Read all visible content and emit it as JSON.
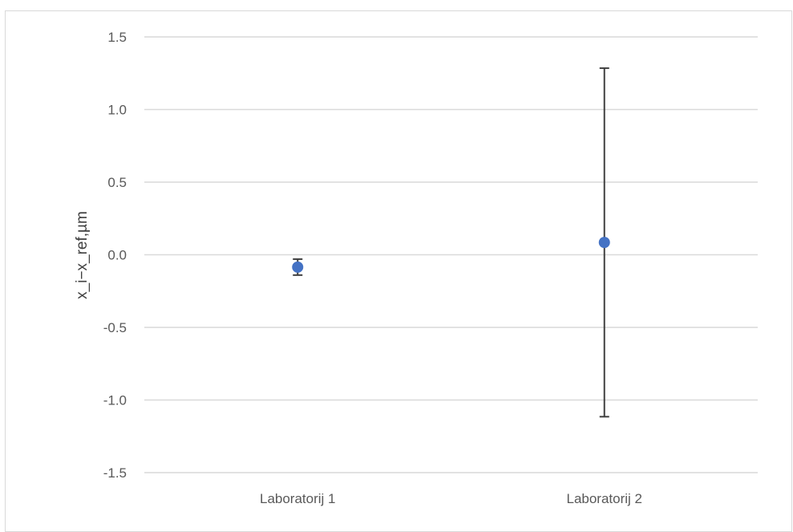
{
  "chart_data": {
    "type": "scatter",
    "title": "",
    "xlabel": "",
    "ylabel": "x_i−x_ref,µm",
    "categories": [
      "Laboratorij 1",
      "Laboratorij 2"
    ],
    "y_ticks": [
      "1.5",
      "1.0",
      "0.5",
      "0.0",
      "-0.5",
      "-1.0",
      "-1.5"
    ],
    "y_tick_values": [
      1.5,
      1.0,
      0.5,
      0.0,
      -0.5,
      -1.0,
      -1.5
    ],
    "ylim": [
      -1.5,
      1.5
    ],
    "grid": true,
    "series": [
      {
        "values": [
          -0.085,
          0.085
        ],
        "error_low": [
          0.055,
          1.2
        ],
        "error_high": [
          0.055,
          1.2
        ],
        "color": "#4472c4"
      }
    ],
    "gridline_color": "#d9d9d9",
    "errorbar_color": "#404040"
  }
}
